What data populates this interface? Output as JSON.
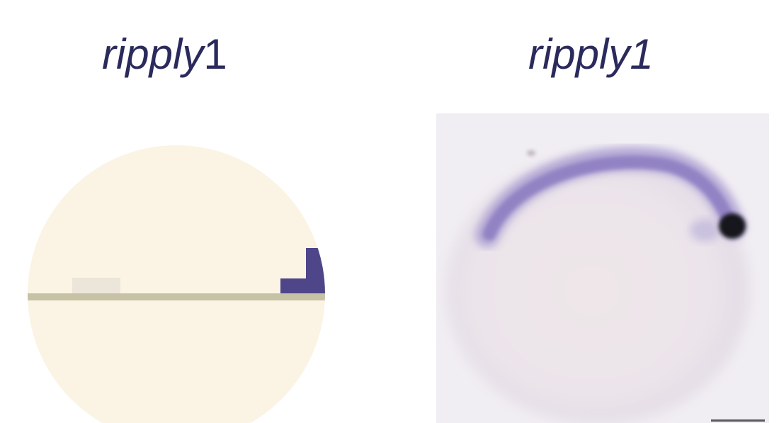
{
  "left_panel": {
    "gene_name": "ripply",
    "gene_suffix": "1"
  },
  "right_panel": {
    "gene_name": "ripply1"
  },
  "colors": {
    "label_text": "#2b2a5c",
    "embryo_fill": "#fbf4e4",
    "expression_purple": "#4e4688",
    "midline": "#c6c2a5",
    "anterior_mark": "#ece6da",
    "photo_background": "#f1eef3"
  }
}
